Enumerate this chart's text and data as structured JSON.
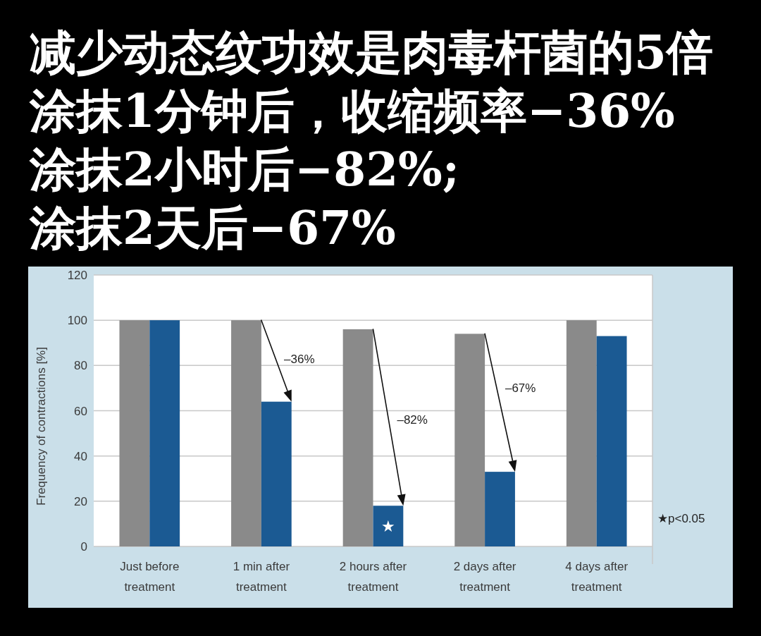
{
  "chart_data": {
    "type": "bar",
    "title": "减少动态纹功效是肉毒杆菌的5倍",
    "subtitle": "涂抹1分钟后，收缩频率−36%\n涂抹2小时后−82%;\n涂抹2天后−67%",
    "ylabel": "Frequency of contractions [%]",
    "categories": [
      "Just before treatment",
      "1 min after treatment",
      "2 hours after treatment",
      "2 days after treatment",
      "4 days after treatment"
    ],
    "series": [
      {
        "color": "#8a8a8a",
        "values": [
          100,
          100,
          96,
          94,
          100
        ]
      },
      {
        "color": "#1b5a93",
        "values": [
          100,
          64,
          18,
          33,
          93
        ]
      }
    ],
    "ylim": [
      0,
      120
    ],
    "yticks": [
      0,
      20,
      40,
      60,
      80,
      100,
      120
    ],
    "grid": "y",
    "annotations": [
      {
        "text": "–36%",
        "x": "1 min after treatment",
        "y": 83
      },
      {
        "text": "–82%",
        "x": "2 hours after treatment",
        "y": 56
      },
      {
        "text": "–67%",
        "x": "2 days after treatment",
        "y": 70
      },
      {
        "text": "★",
        "x": "2 hours after treatment",
        "y": 9
      },
      "★p<0.05"
    ]
  }
}
